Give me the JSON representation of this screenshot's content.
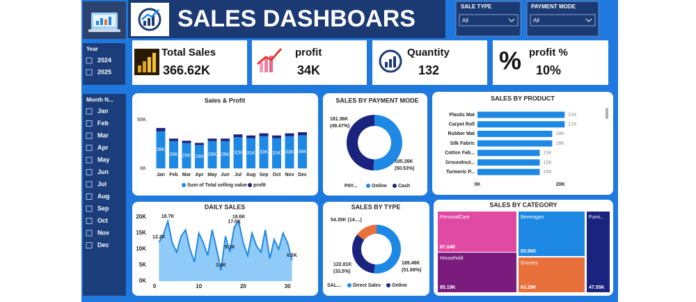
{
  "header": {
    "title": "SALES DASHBOARS"
  },
  "filters": {
    "sale_type": {
      "label": "SALE TYPE",
      "value": "All"
    },
    "payment_mode": {
      "label": "PAYMENT MODE",
      "value": "All"
    },
    "year": {
      "label": "Year",
      "options": [
        "2024",
        "2025"
      ]
    },
    "month": {
      "label": "Month N...",
      "options": [
        "Jan",
        "Feb",
        "Mar",
        "Apr",
        "May",
        "Jun",
        "Jul",
        "Aug",
        "Sep",
        "Oct",
        "Nov",
        "Dec"
      ]
    }
  },
  "kpis": [
    {
      "label": "Total Sales",
      "value": "366.62K"
    },
    {
      "label": "profit",
      "value": "34K"
    },
    {
      "label": "Quantity",
      "value": "132"
    },
    {
      "label": "profit %",
      "value": "10%"
    }
  ],
  "chart_data": [
    {
      "type": "stacked_bar",
      "title": "Sales & Profit",
      "categories": [
        "Jan",
        "Feb",
        "Mar",
        "Apr",
        "May",
        "Jun",
        "Jul",
        "Aug",
        "Sep",
        "Oct",
        "Nov",
        "Dec"
      ],
      "series": [
        {
          "name": "Sum of Total selling value",
          "color": "#1e88e5",
          "values": [
            38000,
            28000,
            26000,
            24000,
            28000,
            28000,
            32000,
            31000,
            33000,
            31000,
            33000,
            34000
          ],
          "value_labels": [
            "38K",
            "28K",
            "26K",
            "24K",
            "28K",
            "28K",
            "32K",
            "31K",
            "33K",
            "31K",
            "33K",
            "34K"
          ]
        },
        {
          "name": "profit",
          "color": "#1a237e",
          "values": [
            3500,
            2600,
            2400,
            2200,
            2600,
            2600,
            2900,
            2800,
            3000,
            2800,
            3000,
            3100
          ]
        }
      ],
      "ylim": [
        0,
        50000
      ],
      "yticks": [
        {
          "value": 0,
          "label": "0K"
        },
        {
          "value": 50000,
          "label": "50K"
        }
      ]
    },
    {
      "type": "donut",
      "title": "SALES BY PAYMENT MODE",
      "legend_title": "PAY...",
      "categories": [
        "Online",
        "Cash"
      ],
      "values": [
        185260,
        181360
      ],
      "colors": [
        "#1e88e5",
        "#1a237e"
      ],
      "value_labels": [
        "185.26K",
        "181.36K"
      ],
      "percent_labels": [
        "(50.53%)",
        "(49.47%)"
      ]
    },
    {
      "type": "hbar",
      "title": "SALES BY PRODUCT",
      "categories": [
        "Plastic Mat",
        "Carpet Roll",
        "Rubber Mat",
        "Silk Fabric",
        "Cotton Fab...",
        "Groundnut...",
        "Turmeric P..."
      ],
      "values": [
        21000,
        21000,
        18000,
        18000,
        15000,
        15000,
        15000
      ],
      "value_labels": [
        "21K",
        "21K",
        "18K",
        "18K",
        "15K",
        "15K",
        "15K"
      ],
      "color": "#1e88e5",
      "xlim": [
        0,
        30000
      ],
      "xticks": [
        {
          "value": 0,
          "label": "0K"
        },
        {
          "value": 20000,
          "label": "20K"
        }
      ]
    },
    {
      "type": "area",
      "title": "DAILY SALES",
      "x": [
        1,
        2,
        3,
        4,
        5,
        6,
        7,
        8,
        9,
        10,
        11,
        12,
        13,
        14,
        15,
        16,
        17,
        18,
        19,
        20,
        21,
        22,
        23,
        24,
        25,
        26,
        27,
        28,
        29,
        30,
        31
      ],
      "values": [
        12200,
        14500,
        18700,
        12000,
        9000,
        14000,
        16000,
        10000,
        6000,
        15000,
        12000,
        8000,
        16000,
        10000,
        3400,
        14000,
        9100,
        17000,
        18600,
        12000,
        8000,
        15000,
        11000,
        9000,
        16000,
        7000,
        13000,
        10000,
        15000,
        12000,
        6500
      ],
      "value_labels": [
        "12.2K",
        null,
        "18.7K",
        null,
        null,
        null,
        null,
        null,
        null,
        null,
        null,
        null,
        null,
        null,
        "3.4K",
        null,
        "9.1K",
        "17.0K",
        "18.6K",
        null,
        null,
        null,
        null,
        null,
        null,
        null,
        null,
        null,
        null,
        null,
        "6.5K"
      ],
      "color": "#1e88e5",
      "fill": "#90caf9",
      "xlim": [
        0,
        31
      ],
      "xticks": [
        0,
        10,
        20,
        30
      ],
      "ylim": [
        0,
        20000
      ],
      "yticks": [
        {
          "value": 0,
          "label": "0K"
        },
        {
          "value": 5000,
          "label": "5K"
        },
        {
          "value": 10000,
          "label": "10K"
        },
        {
          "value": 15000,
          "label": "15K"
        },
        {
          "value": 20000,
          "label": "20K"
        }
      ]
    },
    {
      "type": "donut",
      "title": "SALES BY TYPE",
      "legend_title": "SAL...",
      "categories": [
        "Direct Sales",
        "Online",
        null
      ],
      "values": [
        189460,
        122810,
        54350
      ],
      "colors": [
        "#1e88e5",
        "#1a237e",
        "#e8703a"
      ],
      "value_labels": [
        "189.46K",
        "122.81K",
        "54.35K"
      ],
      "percent_labels": [
        "(51.68%)",
        "(33.5%)",
        "(14....)"
      ]
    },
    {
      "type": "treemap",
      "title": "SALES BY CATEGORY",
      "categories": [
        "PersonalCare",
        "Beverages",
        "Furni...",
        "Household",
        "Grocery"
      ],
      "values": [
        87040,
        83560,
        47550,
        85190,
        63280
      ],
      "value_labels": [
        "87.04K",
        "83.56K",
        "47.55K",
        "85.19K",
        "63.28K"
      ],
      "colors": [
        "#e14aa3",
        "#1e88e5",
        "#1a237e",
        "#7a1b7e",
        "#e8703a"
      ]
    }
  ]
}
